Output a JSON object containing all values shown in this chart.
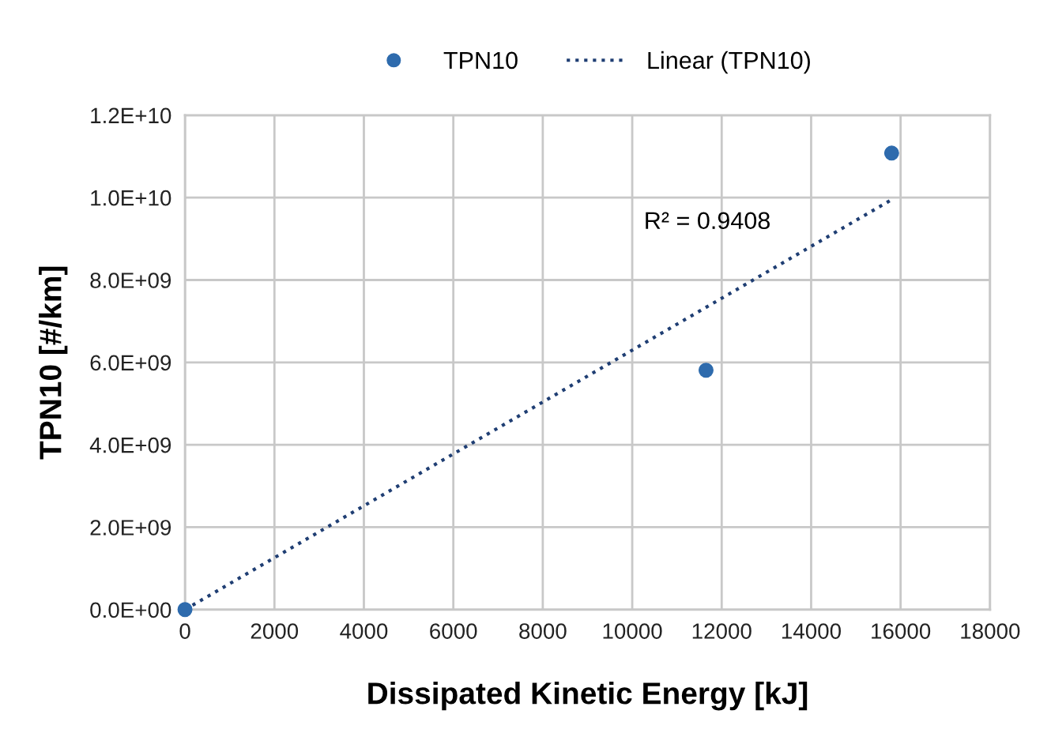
{
  "chart_data": {
    "type": "scatter",
    "xlabel": "Dissipated Kinetic Energy [kJ]",
    "ylabel": "TPN10 [#/km]",
    "series": [
      {
        "name": "TPN10",
        "color": "#2e6bad",
        "marker": "circle",
        "x": [
          0,
          11650,
          15800
        ],
        "values": [
          0,
          5810000000.0,
          11080000000.0
        ]
      },
      {
        "name": "Linear (TPN10)",
        "type": "line",
        "color": "#1f3e73",
        "line_style": "dotted",
        "marker": "none",
        "x": [
          0,
          15800
        ],
        "values": [
          0,
          9950000000.0
        ]
      }
    ],
    "xlim": [
      0,
      18000
    ],
    "xticks": [
      0,
      2000,
      4000,
      6000,
      8000,
      10000,
      12000,
      14000,
      16000,
      18000
    ],
    "ylim": [
      0,
      12000000000.0
    ],
    "yticks": [
      {
        "value": 0,
        "label": "0.0E+00"
      },
      {
        "value": 2000000000.0,
        "label": "2.0E+09"
      },
      {
        "value": 4000000000.0,
        "label": "4.0E+09"
      },
      {
        "value": 6000000000.0,
        "label": "6.0E+09"
      },
      {
        "value": 8000000000.0,
        "label": "8.0E+09"
      },
      {
        "value": 10000000000.0,
        "label": "1.0E+10"
      },
      {
        "value": 12000000000.0,
        "label": "1.2E+10"
      }
    ],
    "annotations": [
      "R² = 0.9408"
    ],
    "grid": true,
    "legend": "top"
  }
}
